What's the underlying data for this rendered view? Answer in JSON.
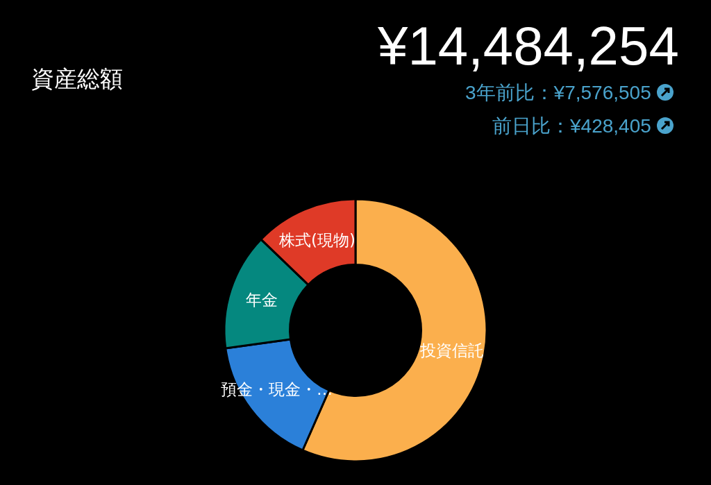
{
  "chart_data": {
    "type": "donut",
    "title": "資産総額",
    "categories": [
      "投資信託",
      "預金・現金・…",
      "年金",
      "株式(現物)"
    ],
    "values": [
      56.6,
      16.2,
      14.4,
      12.8
    ],
    "colors": [
      "#fbaf4d",
      "#2b80d9",
      "#05887f",
      "#df3a27"
    ],
    "annotations": [
      "¥14,484,254",
      "3年前比：¥7,576,505",
      "前日比：¥428,405"
    ]
  }
}
